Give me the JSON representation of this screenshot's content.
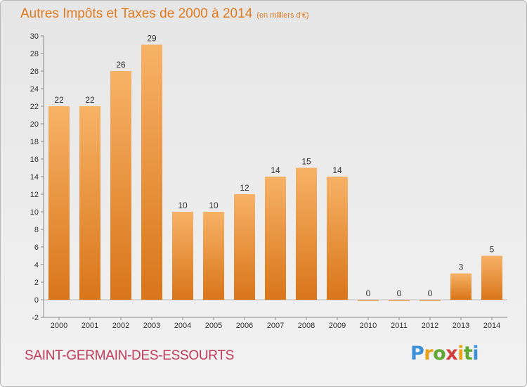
{
  "header": {
    "title": "Autres Impôts et Taxes de 2000 à 2014",
    "unit": "(en milliers d'€)"
  },
  "footer": {
    "commune": "SAINT-GERMAIN-DES-ESSOURTS",
    "logo": {
      "text": "Proxiti",
      "letters": [
        "P",
        "r",
        "o",
        "x",
        "i",
        "t",
        "i"
      ]
    }
  },
  "colors": {
    "bar": "#f29a3c",
    "bar_light": "#f7b266",
    "bar_dark": "#d9751a",
    "title": "#e07a1f",
    "commune": "#c0395b"
  },
  "chart_data": {
    "type": "bar",
    "title": "Autres Impôts et Taxes de 2000 à 2014",
    "subtitle": "(en milliers d'€)",
    "xlabel": "",
    "ylabel": "",
    "categories": [
      "2000",
      "2001",
      "2002",
      "2003",
      "2004",
      "2005",
      "2006",
      "2007",
      "2008",
      "2009",
      "2010",
      "2011",
      "2012",
      "2013",
      "2014"
    ],
    "values": [
      22,
      22,
      26,
      29,
      10,
      10,
      12,
      14,
      15,
      14,
      0,
      0,
      0,
      3,
      5
    ],
    "value_labels": [
      "22",
      "22",
      "26",
      "29",
      "10",
      "10",
      "12",
      "14",
      "15",
      "14",
      "0",
      "0",
      "0",
      "3",
      "5"
    ],
    "ylim": [
      -2,
      30
    ],
    "yticks": [
      -2,
      0,
      2,
      4,
      6,
      8,
      10,
      12,
      14,
      16,
      18,
      20,
      22,
      24,
      26,
      28,
      30
    ],
    "grid": false,
    "legend": "none"
  }
}
